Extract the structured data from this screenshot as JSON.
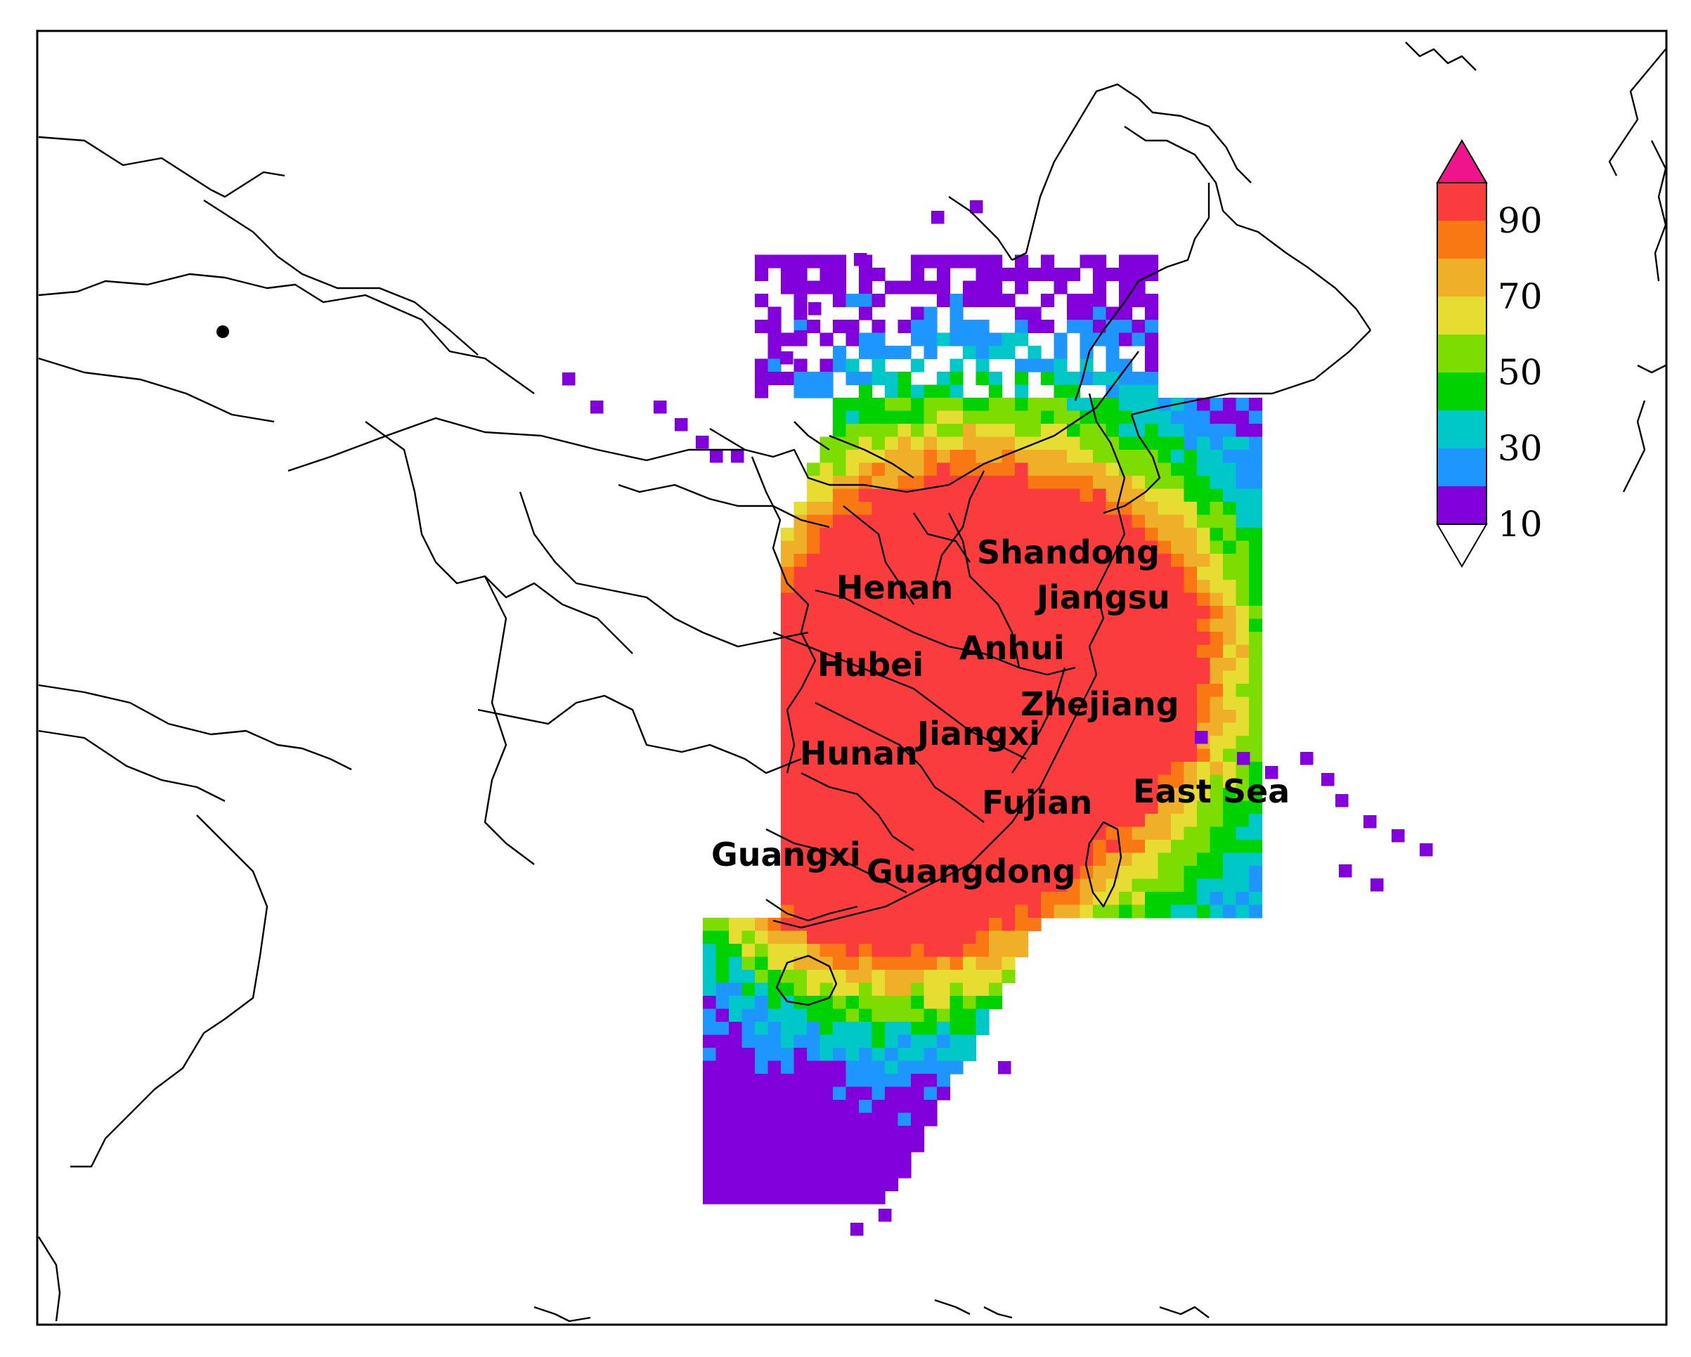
{
  "map": {
    "place_labels": [
      "Shandong",
      "Henan",
      "Jiangsu",
      "Anhui",
      "Hubei",
      "Zhejiang",
      "Jiangxi",
      "Hunan",
      "Fujian",
      "East Sea",
      "Guangxi",
      "Guangdong"
    ]
  },
  "colorbar": {
    "tick_labels": [
      "10",
      "30",
      "50",
      "70",
      "90"
    ],
    "colors": [
      "#ffffff",
      "#8200dc",
      "#1e96ff",
      "#00c8c8",
      "#00d200",
      "#7ddc00",
      "#e6dc32",
      "#f0af28",
      "#fa7814",
      "#fa3c3c",
      "#f0148c"
    ]
  }
}
